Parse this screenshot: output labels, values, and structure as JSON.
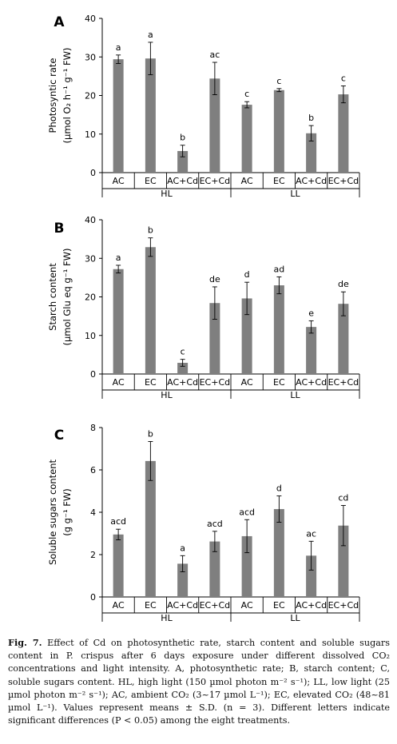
{
  "figure": {
    "caption_label": "Fig. 7.",
    "caption_text": "Effect of Cd on photosynthetic rate, starch content and soluble sugars content in P. crispus after 6 days exposure under different dissolved CO₂ concentrations and light intensity. A, photosynthetic rate; B, starch content; C, soluble sugars content. HL, high light (150 µmol photon m⁻² s⁻¹); LL, low light (25 µmol photon m⁻² s⁻¹); AC, ambient CO₂ (3~17 µmol L⁻¹); EC, elevated CO₂ (48~81 µmol L⁻¹). Values represent means ± S.D. (n = 3). Different letters indicate significant differences (P < 0.05) among the eight treatments."
  },
  "chart_data": [
    {
      "type": "bar",
      "panel": "A",
      "ylabel_line1": "Photosyntic rate",
      "ylabel_line2": "(µmol O₂ h⁻¹ g⁻¹ FW)",
      "ylim": [
        0,
        40
      ],
      "yticks": [
        "0",
        "10",
        "20",
        "30",
        "40"
      ],
      "categories": [
        "AC",
        "EC",
        "AC+Cd",
        "EC+Cd",
        "AC",
        "EC",
        "AC+Cd",
        "EC+Cd"
      ],
      "groups": [
        "HL",
        "LL"
      ],
      "values": [
        29.4,
        29.6,
        5.6,
        24.4,
        17.6,
        21.4,
        10.2,
        20.3
      ],
      "errors": [
        1.1,
        4.2,
        1.5,
        4.2,
        0.8,
        0.4,
        2.0,
        2.2
      ],
      "letters": [
        "a",
        "a",
        "b",
        "ac",
        "c",
        "c",
        "b",
        "c"
      ],
      "bar_color": "#7f7f7f"
    },
    {
      "type": "bar",
      "panel": "B",
      "ylabel_line1": "Starch content",
      "ylabel_line2": "(µmol Glu eq g⁻¹ FW)",
      "ylim": [
        0,
        40
      ],
      "yticks": [
        "0",
        "10",
        "20",
        "30",
        "40"
      ],
      "categories": [
        "AC",
        "EC",
        "AC+Cd",
        "EC+Cd",
        "AC",
        "EC",
        "AC+Cd",
        "EC+Cd"
      ],
      "groups": [
        "HL",
        "LL"
      ],
      "values": [
        27.2,
        32.9,
        2.9,
        18.4,
        19.6,
        23.0,
        12.2,
        18.2
      ],
      "errors": [
        1.0,
        2.4,
        0.9,
        4.2,
        4.2,
        2.2,
        1.6,
        3.1
      ],
      "letters": [
        "a",
        "b",
        "c",
        "de",
        "d",
        "ad",
        "e",
        "de"
      ],
      "bar_color": "#7f7f7f"
    },
    {
      "type": "bar",
      "panel": "C",
      "ylabel_line1": "Soluble sugars content",
      "ylabel_line2": "(g g⁻¹ FW)",
      "ylim": [
        0,
        8
      ],
      "yticks": [
        "0",
        "2",
        "4",
        "6",
        "8"
      ],
      "categories": [
        "AC",
        "EC",
        "AC+Cd",
        "EC+Cd",
        "AC",
        "EC",
        "AC+Cd",
        "EC+Cd"
      ],
      "groups": [
        "HL",
        "LL"
      ],
      "values": [
        2.95,
        6.42,
        1.57,
        2.62,
        2.87,
        4.15,
        1.95,
        3.37
      ],
      "errors": [
        0.25,
        0.92,
        0.38,
        0.48,
        0.78,
        0.62,
        0.68,
        0.95
      ],
      "letters": [
        "acd",
        "b",
        "a",
        "acd",
        "acd",
        "d",
        "ac",
        "cd"
      ],
      "bar_color": "#7f7f7f"
    }
  ]
}
